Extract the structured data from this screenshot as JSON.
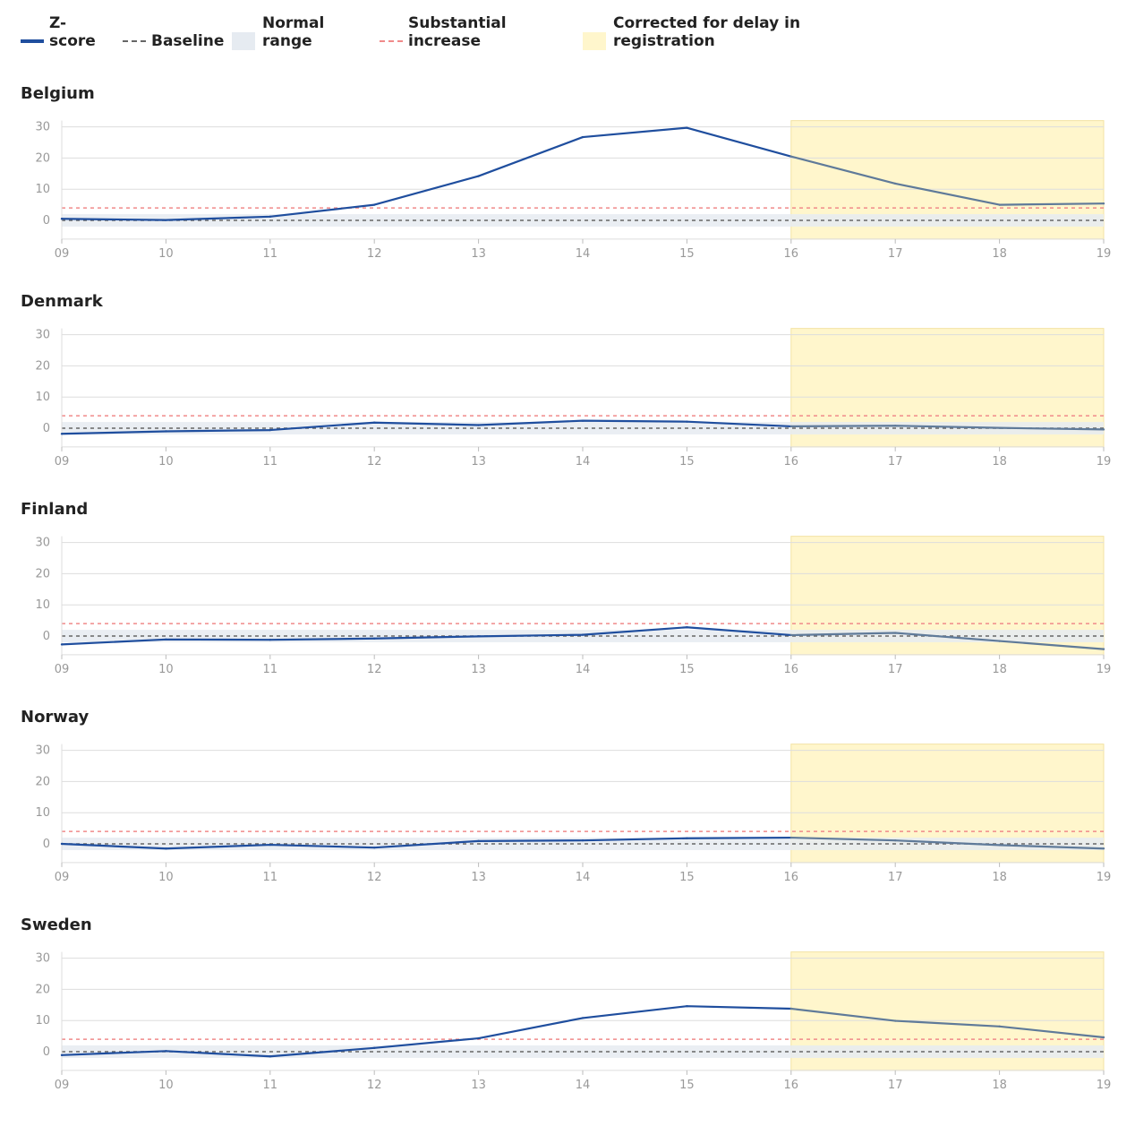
{
  "legend": {
    "zscore": "Z-\nscore",
    "baseline": "Baseline",
    "normal_range": "Normal\nrange",
    "substantial_increase": "Substantial\nincrease",
    "corrected": "Corrected for delay in\nregistration"
  },
  "colors": {
    "zscore": "#1f4e9e",
    "zscore_corrected": "#5f7a99",
    "baseline": "#666666",
    "normal_range": "#e6ebf1",
    "substantial_increase": "#f08a8a",
    "corrected": "#fff6cc",
    "grid": "#dddddd",
    "tick": "#999999"
  },
  "chart_data": [
    {
      "type": "line",
      "title": "Belgium",
      "x": [
        "09",
        "10",
        "11",
        "12",
        "13",
        "14",
        "15",
        "16",
        "17",
        "18",
        "19"
      ],
      "series": [
        {
          "values": [
            0.5,
            0.1,
            1.2,
            5.0,
            14.2,
            26.7,
            29.7,
            20.5,
            11.8,
            5.0,
            5.4
          ]
        }
      ],
      "baseline": 0,
      "normal_range": [
        -2,
        2
      ],
      "substantial_increase": 4,
      "corrected_from": "16",
      "ylim": [
        -6,
        32
      ],
      "yticks": [
        0,
        10,
        20,
        30
      ],
      "grid": true
    },
    {
      "type": "line",
      "title": "Denmark",
      "x": [
        "09",
        "10",
        "11",
        "12",
        "13",
        "14",
        "15",
        "16",
        "17",
        "18",
        "19"
      ],
      "series": [
        {
          "values": [
            -1.8,
            -1.0,
            -0.6,
            1.8,
            1.0,
            2.4,
            2.1,
            0.6,
            0.8,
            0.1,
            -0.4
          ]
        }
      ],
      "baseline": 0,
      "normal_range": [
        -2,
        2
      ],
      "substantial_increase": 4,
      "corrected_from": "16",
      "ylim": [
        -6,
        32
      ],
      "yticks": [
        0,
        10,
        20,
        30
      ],
      "grid": true
    },
    {
      "type": "line",
      "title": "Finland",
      "x": [
        "09",
        "10",
        "11",
        "12",
        "13",
        "14",
        "15",
        "16",
        "17",
        "18",
        "19"
      ],
      "series": [
        {
          "values": [
            -2.7,
            -1.1,
            -1.2,
            -0.8,
            -0.1,
            0.4,
            2.8,
            0.3,
            1.0,
            -1.6,
            -4.2
          ]
        }
      ],
      "baseline": 0,
      "normal_range": [
        -2,
        2
      ],
      "substantial_increase": 4,
      "corrected_from": "16",
      "ylim": [
        -6,
        32
      ],
      "yticks": [
        0,
        10,
        20,
        30
      ],
      "grid": true
    },
    {
      "type": "line",
      "title": "Norway",
      "x": [
        "09",
        "10",
        "11",
        "12",
        "13",
        "14",
        "15",
        "16",
        "17",
        "18",
        "19"
      ],
      "series": [
        {
          "values": [
            0.0,
            -1.5,
            -0.3,
            -1.2,
            0.9,
            1.1,
            1.8,
            2.0,
            1.1,
            -0.4,
            -1.5
          ]
        }
      ],
      "baseline": 0,
      "normal_range": [
        -2,
        2
      ],
      "substantial_increase": 4,
      "corrected_from": "16",
      "ylim": [
        -6,
        32
      ],
      "yticks": [
        0,
        10,
        20,
        30
      ],
      "grid": true
    },
    {
      "type": "line",
      "title": "Sweden",
      "x": [
        "09",
        "10",
        "11",
        "12",
        "13",
        "14",
        "15",
        "16",
        "17",
        "18",
        "19"
      ],
      "series": [
        {
          "values": [
            -1.1,
            0.2,
            -1.5,
            1.2,
            4.3,
            10.8,
            14.6,
            13.8,
            9.9,
            8.1,
            4.6
          ]
        }
      ],
      "baseline": 0,
      "normal_range": [
        -2,
        2
      ],
      "substantial_increase": 4,
      "corrected_from": "16",
      "ylim": [
        -6,
        32
      ],
      "yticks": [
        0,
        10,
        20,
        30
      ],
      "grid": true
    }
  ]
}
